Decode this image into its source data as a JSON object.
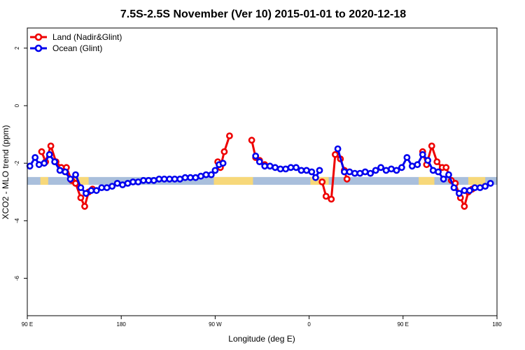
{
  "chart_data": {
    "type": "line",
    "title": "7.5S-2.5S November (Ver 10)   2015-01-01 to 2020-12-18",
    "xlabel": "Longitude (deg E)",
    "ylabel": "XCO2 - MLO trend (ppm)",
    "xlim": [
      90,
      450
    ],
    "ylim": [
      -7.3,
      2.7
    ],
    "x_ticks": [
      {
        "value": 90,
        "label": "90 E"
      },
      {
        "value": 162,
        "label": "180"
      },
      {
        "value": 234,
        "label": "90 W"
      },
      {
        "value": 306,
        "label": "0"
      },
      {
        "value": 378,
        "label": "90 E"
      },
      {
        "value": 450,
        "label": "180"
      }
    ],
    "y_ticks": [
      {
        "value": 2,
        "label": "2"
      },
      {
        "value": 0,
        "label": "0"
      },
      {
        "value": -2,
        "label": "-2"
      },
      {
        "value": -4,
        "label": "-4"
      },
      {
        "value": -6,
        "label": "-6"
      }
    ],
    "band": {
      "y_min": -2.75,
      "y_max": -2.48,
      "color": "#a9bfdc",
      "land_color": "#f7d87a"
    },
    "land_spans": [
      [
        100,
        106
      ],
      [
        124,
        137
      ],
      [
        233,
        263
      ],
      [
        307,
        321
      ],
      [
        390,
        402
      ],
      [
        428,
        441
      ]
    ],
    "legend_position": "top-left",
    "series": [
      {
        "name": "Land (Nadir&Glint)",
        "color": "#ee0000",
        "segments": [
          [
            [
              101,
              -1.6
            ],
            [
              104,
              -1.95
            ],
            [
              108,
              -1.4
            ],
            [
              112,
              -1.95
            ],
            [
              116,
              -2.15
            ],
            [
              120,
              -2.15
            ],
            [
              124,
              -2.6
            ],
            [
              127,
              -2.7
            ],
            [
              131,
              -3.2
            ],
            [
              134,
              -3.5
            ],
            [
              137,
              -3.0
            ],
            [
              140,
              -2.9
            ]
          ],
          [
            [
              236,
              -1.95
            ],
            [
              238,
              -2.15
            ],
            [
              241,
              -1.6
            ],
            [
              245,
              -1.05
            ]
          ],
          [
            [
              262,
              -1.2
            ],
            [
              265,
              -1.8
            ],
            [
              268,
              -1.9
            ],
            [
              272,
              -2.05
            ]
          ],
          [
            [
              316,
              -2.65
            ],
            [
              319,
              -3.15
            ],
            [
              323,
              -3.25
            ],
            [
              326,
              -1.7
            ],
            [
              330,
              -1.85
            ],
            [
              333,
              -2.25
            ],
            [
              335,
              -2.55
            ]
          ],
          [
            [
              393,
              -1.6
            ],
            [
              396,
              -2.05
            ],
            [
              400,
              -1.4
            ],
            [
              404,
              -1.95
            ],
            [
              408,
              -2.15
            ],
            [
              411,
              -2.15
            ],
            [
              415,
              -2.6
            ],
            [
              418,
              -2.7
            ],
            [
              422,
              -3.2
            ],
            [
              425,
              -3.5
            ],
            [
              428,
              -3.0
            ],
            [
              431,
              -2.9
            ]
          ]
        ]
      },
      {
        "name": "Ocean (Glint)",
        "color": "#0000ee",
        "segments": [
          [
            [
              92,
              -2.1
            ],
            [
              96,
              -1.8
            ],
            [
              99,
              -2.05
            ],
            [
              103,
              -2.0
            ],
            [
              107,
              -1.7
            ],
            [
              111,
              -1.95
            ],
            [
              115,
              -2.25
            ],
            [
              119,
              -2.3
            ],
            [
              123,
              -2.55
            ],
            [
              127,
              -2.4
            ],
            [
              131,
              -2.85
            ],
            [
              135,
              -3.05
            ],
            [
              139,
              -2.95
            ],
            [
              143,
              -2.95
            ],
            [
              147,
              -2.85
            ],
            [
              151,
              -2.85
            ],
            [
              155,
              -2.8
            ],
            [
              159,
              -2.7
            ],
            [
              163,
              -2.75
            ],
            [
              167,
              -2.7
            ],
            [
              171,
              -2.65
            ],
            [
              175,
              -2.65
            ],
            [
              179,
              -2.6
            ],
            [
              183,
              -2.6
            ],
            [
              187,
              -2.6
            ],
            [
              191,
              -2.55
            ],
            [
              195,
              -2.55
            ],
            [
              199,
              -2.55
            ],
            [
              203,
              -2.55
            ],
            [
              207,
              -2.55
            ],
            [
              211,
              -2.5
            ],
            [
              215,
              -2.5
            ],
            [
              219,
              -2.5
            ],
            [
              223,
              -2.45
            ],
            [
              227,
              -2.4
            ],
            [
              231,
              -2.4
            ],
            [
              234,
              -2.25
            ],
            [
              237,
              -2.05
            ],
            [
              240,
              -2.0
            ]
          ],
          [
            [
              265,
              -1.75
            ],
            [
              268,
              -1.95
            ],
            [
              272,
              -2.1
            ],
            [
              276,
              -2.1
            ],
            [
              280,
              -2.15
            ],
            [
              284,
              -2.2
            ],
            [
              288,
              -2.2
            ],
            [
              292,
              -2.15
            ],
            [
              296,
              -2.15
            ],
            [
              300,
              -2.25
            ],
            [
              304,
              -2.25
            ],
            [
              308,
              -2.3
            ],
            [
              311,
              -2.5
            ],
            [
              314,
              -2.25
            ]
          ],
          [
            [
              328,
              -1.5
            ],
            [
              333,
              -2.3
            ],
            [
              337,
              -2.3
            ],
            [
              341,
              -2.35
            ],
            [
              345,
              -2.35
            ],
            [
              349,
              -2.3
            ],
            [
              353,
              -2.35
            ],
            [
              357,
              -2.25
            ],
            [
              361,
              -2.15
            ],
            [
              365,
              -2.25
            ],
            [
              369,
              -2.2
            ],
            [
              373,
              -2.25
            ],
            [
              377,
              -2.15
            ],
            [
              381,
              -1.8
            ],
            [
              385,
              -2.1
            ],
            [
              389,
              -2.05
            ],
            [
              393,
              -1.7
            ],
            [
              397,
              -1.9
            ],
            [
              401,
              -2.25
            ],
            [
              405,
              -2.3
            ],
            [
              409,
              -2.55
            ],
            [
              413,
              -2.4
            ],
            [
              417,
              -2.85
            ],
            [
              421,
              -3.05
            ],
            [
              425,
              -2.95
            ],
            [
              429,
              -2.95
            ],
            [
              433,
              -2.85
            ],
            [
              437,
              -2.85
            ],
            [
              441,
              -2.8
            ],
            [
              445,
              -2.7
            ]
          ]
        ]
      }
    ]
  }
}
